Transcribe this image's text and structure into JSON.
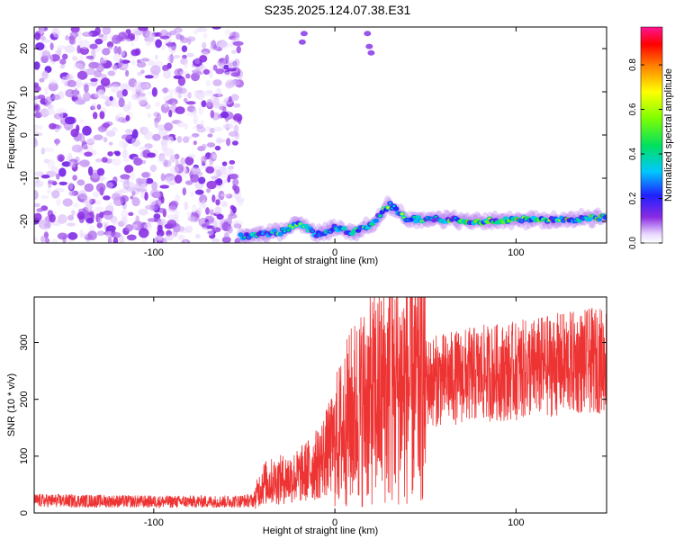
{
  "title": "S235.2025.124.07.38.E31",
  "colors": {
    "snr_line": "#ee3333",
    "scatter_main": "#8a2be2"
  },
  "chart_data": [
    {
      "type": "heatmap",
      "xlabel": "Height of straight line (km)",
      "ylabel": "Frequency (Hz)",
      "xlim": [
        -166,
        150
      ],
      "ylim": [
        -25,
        25
      ],
      "x_ticks": [
        -100,
        0,
        100
      ],
      "y_ticks": [
        20,
        10,
        0,
        -10,
        -20
      ],
      "colorbar": {
        "label": "Normalized spectral amplitude",
        "range": [
          0.0,
          0.97
        ],
        "ticks": [
          0.0,
          0.2,
          0.4,
          0.6,
          0.8
        ],
        "colormap": "rainbow"
      },
      "features": {
        "noise_region_x": [
          -166,
          -52
        ],
        "noise_amplitude_range": [
          0.0,
          0.1
        ],
        "ridge": [
          [
            -52,
            -23.5
          ],
          [
            -30,
            -22.5
          ],
          [
            -20,
            -20.5
          ],
          [
            -10,
            -23
          ],
          [
            0,
            -21.5
          ],
          [
            10,
            -22.5
          ],
          [
            20,
            -21
          ],
          [
            30,
            -16
          ],
          [
            40,
            -19.5
          ],
          [
            60,
            -19.5
          ],
          [
            80,
            -20
          ],
          [
            100,
            -19.5
          ],
          [
            120,
            -19.8
          ],
          [
            150,
            -19
          ]
        ],
        "ridge_amplitude_range": [
          0.1,
          0.9
        ]
      }
    },
    {
      "type": "line",
      "xlabel": "Height of straight line (km)",
      "ylabel": "SNR (10 * v/v)",
      "xlim": [
        -166,
        150
      ],
      "ylim": [
        0,
        380
      ],
      "x_ticks": [
        -100,
        0,
        100
      ],
      "y_ticks": [
        0,
        100,
        200,
        300
      ],
      "series": [
        {
          "x_range": [
            -166,
            150
          ],
          "trend": [
            [
              -166,
              22
            ],
            [
              -100,
              20
            ],
            [
              -60,
              20
            ],
            [
              -45,
              22
            ],
            [
              -40,
              52
            ],
            [
              -20,
              65
            ],
            [
              -10,
              85
            ],
            [
              0,
              125
            ],
            [
              10,
              175
            ],
            [
              20,
              200
            ],
            [
              30,
              215
            ],
            [
              40,
              225
            ],
            [
              60,
              235
            ],
            [
              80,
              245
            ],
            [
              100,
              250
            ],
            [
              120,
              260
            ],
            [
              150,
              270
            ]
          ],
          "peak": {
            "x": 33,
            "y": 380
          }
        }
      ]
    }
  ]
}
